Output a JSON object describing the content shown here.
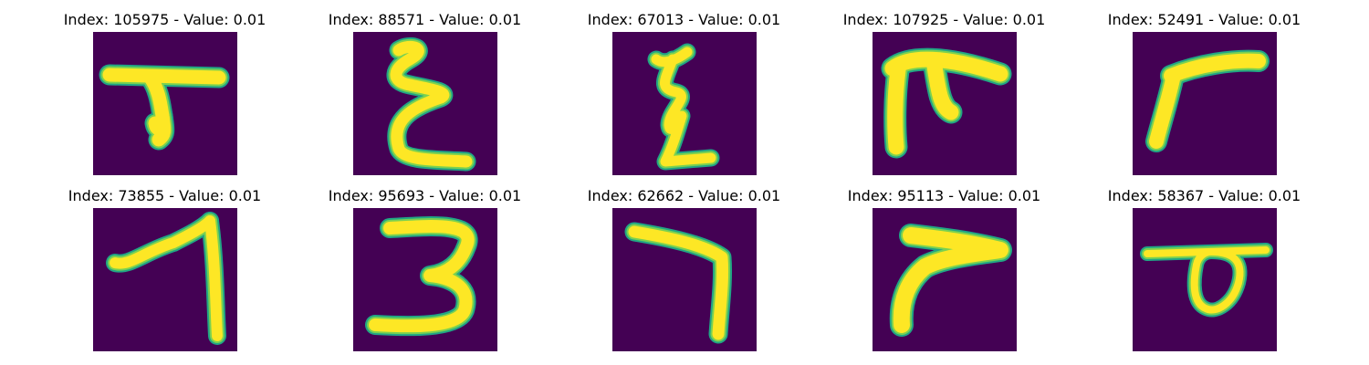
{
  "colors": {
    "background": "#440154",
    "stroke_outer": "#21a685",
    "stroke_mid": "#7ad151",
    "stroke_core": "#fde725"
  },
  "samples": [
    {
      "title": "Index: 105975 - Value: 0.01",
      "glyph": "glyph-t-hook",
      "index": 105975,
      "value": 0.01
    },
    {
      "title": "Index: 88571 - Value: 0.01",
      "glyph": "glyph-epsilon",
      "index": 88571,
      "value": 0.01
    },
    {
      "title": "Index: 67013 - Value: 0.01",
      "glyph": "glyph-zigzag",
      "index": 67013,
      "value": 0.01
    },
    {
      "title": "Index: 107925 - Value: 0.01",
      "glyph": "glyph-pi-hook",
      "index": 107925,
      "value": 0.01
    },
    {
      "title": "Index: 52491 - Value: 0.01",
      "glyph": "glyph-gamma",
      "index": 52491,
      "value": 0.01
    },
    {
      "title": "Index: 73855 - Value: 0.01",
      "glyph": "glyph-seven-long",
      "index": 73855,
      "value": 0.01
    },
    {
      "title": "Index: 95693 - Value: 0.01",
      "glyph": "glyph-three",
      "index": 95693,
      "value": 0.01
    },
    {
      "title": "Index: 62662 - Value: 0.01",
      "glyph": "glyph-seven-bent",
      "index": 62662,
      "value": 0.01
    },
    {
      "title": "Index: 95113 - Value: 0.01",
      "glyph": "glyph-arrow-stroke",
      "index": 95113,
      "value": 0.01
    },
    {
      "title": "Index: 58367 - Value: 0.01",
      "glyph": "glyph-loop-bar",
      "index": 58367,
      "value": 0.01
    }
  ]
}
